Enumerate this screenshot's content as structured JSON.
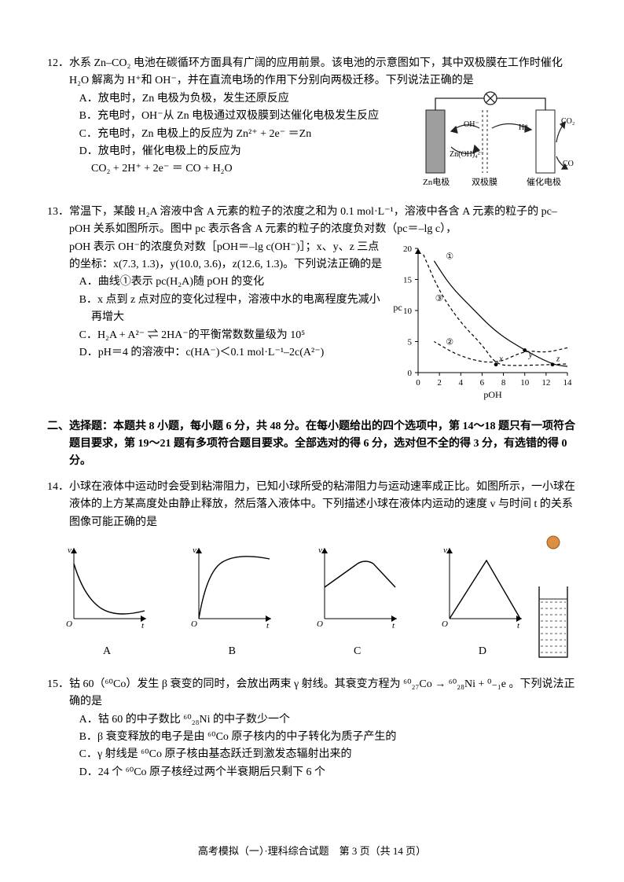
{
  "q12": {
    "num": "12．",
    "stem": "水系 Zn–CO₂ 电池在碳循环方面具有广阔的应用前景。该电池的示意图如下，其中双极膜在工作时催化 H₂O 解离为 H⁺和 OH⁻，并在直流电场的作用下分别向两极迁移。下列说法正确的是",
    "A": "A．放电时，Zn 电极为负极，发生还原反应",
    "B": "B．充电时，OH⁻从 Zn 电极通过双极膜到达催化电极发生反应",
    "C": "C．充电时，Zn 电极上的反应为 Zn²⁺ + 2e⁻ ＝Zn",
    "D_line1": "D．放电时，催化电极上的反应为",
    "D_line2": "CO₂ + 2H⁺ + 2e⁻ ＝ CO + H₂O",
    "fig": {
      "zn": "Zn电极",
      "bipolar": "双极膜",
      "cat": "催化电极",
      "oh": "OH⁻",
      "h": "H⁺",
      "znoh": "Zn(OH)₄²⁻",
      "co2": "CO₂",
      "co": "CO",
      "colors": {
        "zn_fill": "#9e9e9e",
        "line": "#222",
        "bipolar_stroke": "#222",
        "bg": "#ffffff"
      }
    }
  },
  "q13": {
    "num": "13．",
    "stem1": "常温下，某酸 H₂A 溶液中含 A 元素的粒子的浓度之和为 0.1 mol·L⁻¹，溶液中各含 A 元素的粒子的 pc–pOH 关系如图所示。图中 pc 表示各含 A 元素的粒子的浓度负对数（pc＝–lg c），",
    "stem2": "pOH 表示 OH⁻的浓度负对数［pOH＝–lg c(OH⁻)］；x、y、z 三点的坐标：x(7.3, 1.3)，y(10.0, 3.6)，z(12.6, 1.3)。下列说法正确的是",
    "A": "A．曲线①表示 pc(H₂A)随 pOH 的变化",
    "B": "B．x 点到 z 点对应的变化过程中，溶液中水的电离程度先减小再增大",
    "C": "C．H₂A + A²⁻ ⇌ 2HA⁻的平衡常数数量级为 10⁵",
    "D": "D．pH＝4 的溶液中：c(HA⁻)＜0.1 mol·L⁻¹–2c(A²⁻)",
    "chart": {
      "xlabel": "pOH",
      "ylabel": "pc",
      "xlim": [
        0,
        14
      ],
      "ylim": [
        0,
        20
      ],
      "xticks": [
        0,
        2,
        4,
        6,
        8,
        10,
        12,
        14
      ],
      "yticks": [
        0,
        5,
        10,
        15,
        20
      ],
      "m1": "①",
      "m2": "②",
      "m3": "③",
      "mx": "x",
      "my": "y",
      "mz": "z",
      "colors": {
        "axis": "#000",
        "curve": "#000",
        "dash": "#000",
        "pt": "#000"
      },
      "pts": {
        "x": [
          7.3,
          1.3
        ],
        "y": [
          10.0,
          3.6
        ],
        "z": [
          12.6,
          1.3
        ]
      },
      "series1_solid": [
        [
          14,
          1
        ],
        [
          12.6,
          1.3
        ],
        [
          10,
          3.6
        ],
        [
          7.3,
          6.5
        ],
        [
          5,
          10.5
        ],
        [
          3,
          14
        ],
        [
          1.5,
          18
        ]
      ],
      "series2_dash": [
        [
          14,
          4
        ],
        [
          12,
          3.2
        ],
        [
          10,
          3.6
        ],
        [
          7.3,
          1.3
        ],
        [
          4,
          2.5
        ],
        [
          1.5,
          5
        ]
      ],
      "series3_dash": [
        [
          0.5,
          19
        ],
        [
          2,
          13
        ],
        [
          4,
          8
        ],
        [
          6,
          4.5
        ],
        [
          7.3,
          1.3
        ],
        [
          9,
          1.1
        ],
        [
          12.6,
          1.3
        ],
        [
          14,
          1.4
        ]
      ]
    }
  },
  "section2": "二、选择题：本题共 8 小题，每小题 6 分，共 48 分。在每小题给出的四个选项中，第 14～18 题只有一项符合题目要求，第 19～21 题有多项符合题目要求。全部选对的得 6 分，选对但不全的得 3 分，有选错的得 0 分。",
  "q14": {
    "num": "14．",
    "stem": "小球在液体中运动时会受到粘滞阻力，已知小球所受的粘滞阻力与运动速率成正比。如图所示，一小球在液体的上方某高度处由静止释放，然后落入液体中。下列描述小球在液体内运动的速度 v 与时间 t 的关系图像可能正确的是",
    "labels": {
      "A": "A",
      "B": "B",
      "C": "C",
      "D": "D",
      "v": "v",
      "t": "t",
      "O": "O"
    },
    "fig": {
      "ball": "#d98f45",
      "ball_border": "#a05a10",
      "jar": "#222"
    }
  },
  "q15": {
    "num": "15．",
    "stem": "钴 60（⁶⁰Co）发生 β 衰变的同时，会放出两束 γ 射线。其衰变方程为 ⁶⁰₂₇Co → ⁶⁰₂₈Ni + ⁰₋₁e 。下列说法正确的是",
    "A": "A．钴 60 的中子数比 ⁶⁰₂₈Ni 的中子数少一个",
    "B": "B．β 衰变释放的电子是由 ⁶⁰Co 原子核内的中子转化为质子产生的",
    "C": "C．γ 射线是 ⁶⁰Co 原子核由基态跃迁到激发态辐射出来的",
    "D": "D．24 个 ⁶⁰Co 原子核经过两个半衰期后只剩下 6 个"
  },
  "footer": "高考模拟（一）·理科综合试题　第 3 页（共 14 页）"
}
